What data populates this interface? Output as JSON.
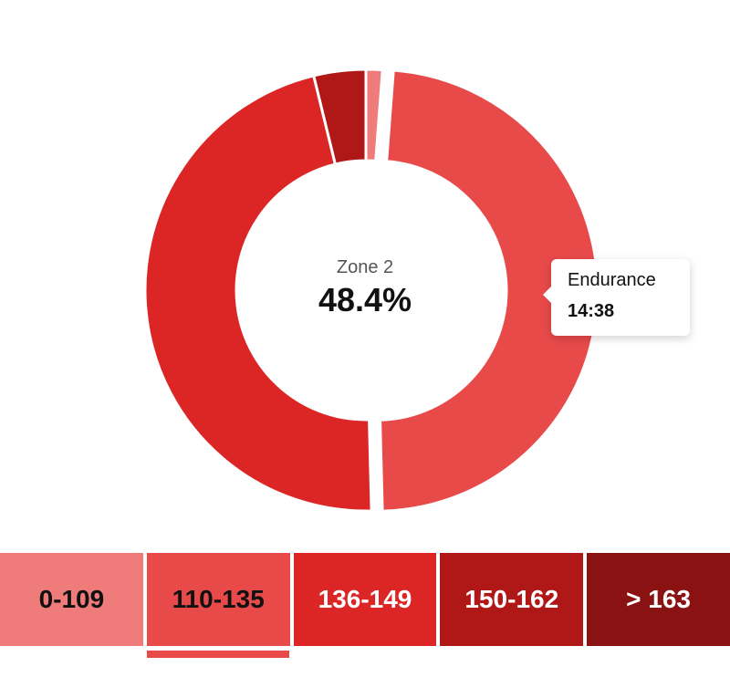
{
  "chart_data": {
    "type": "pie",
    "donut": true,
    "slices": [
      {
        "label": "0-109",
        "value": 1.2,
        "color": "#EF7B7B"
      },
      {
        "label": "110-135",
        "value": 48.4,
        "color": "#E84A4A"
      },
      {
        "label": "136-149",
        "value": 46.6,
        "color": "#DC2626"
      },
      {
        "label": "150-162",
        "value": 3.8,
        "color": "#B01717"
      },
      {
        "label": "> 163",
        "value": 0,
        "color": "#8A1212"
      }
    ],
    "center": {
      "title": "Zone 2",
      "value": "48.4%"
    },
    "tooltip": {
      "title": "Endurance",
      "value": "14:38"
    }
  },
  "zones": [
    {
      "label": "0-109",
      "color": "#EF7B7B",
      "text_color": "#111111"
    },
    {
      "label": "110-135",
      "color": "#E84A4A",
      "text_color": "#111111"
    },
    {
      "label": "136-149",
      "color": "#DC2626",
      "text_color": "#ffffff"
    },
    {
      "label": "150-162",
      "color": "#B01717",
      "text_color": "#ffffff"
    },
    {
      "label": "> 163",
      "color": "#8A1212",
      "text_color": "#ffffff"
    }
  ],
  "selected_zone": 1,
  "indicator_color": "#E84A4A"
}
